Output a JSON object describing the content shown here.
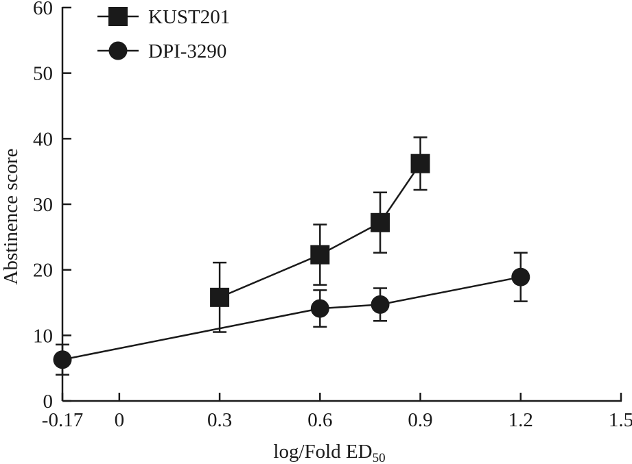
{
  "chart_data": {
    "type": "line",
    "title": "",
    "xlabel": "log/Fold ED",
    "xlabel_subscript": "50",
    "ylabel": "Abstinence score",
    "xlim": [
      -0.17,
      1.5
    ],
    "ylim": [
      0,
      60
    ],
    "x_ticks": [
      -0.17,
      0,
      0.3,
      0.6,
      0.9,
      1.2,
      1.5
    ],
    "x_tick_labels": [
      "-0.17",
      "0",
      "0.3",
      "0.6",
      "0.9",
      "1.2",
      "1.5"
    ],
    "y_ticks": [
      0,
      10,
      20,
      30,
      40,
      50,
      60
    ],
    "y_tick_labels": [
      "0",
      "10",
      "20",
      "30",
      "40",
      "50",
      "60"
    ],
    "grid": false,
    "legend_position": "top-left",
    "series": [
      {
        "name": "KUST201",
        "marker": "square",
        "x": [
          0.3,
          0.6,
          0.78,
          0.9
        ],
        "y": [
          15.8,
          22.3,
          27.2,
          36.2
        ],
        "err": [
          5.3,
          4.6,
          4.6,
          4.0
        ]
      },
      {
        "name": "DPI-3290",
        "marker": "circle",
        "x": [
          -0.17,
          0.6,
          0.78,
          1.2
        ],
        "y": [
          6.3,
          14.1,
          14.7,
          18.9
        ],
        "err": [
          2.3,
          2.8,
          2.5,
          3.7
        ]
      }
    ],
    "colors": {
      "ink": "#1a1a1a"
    }
  }
}
